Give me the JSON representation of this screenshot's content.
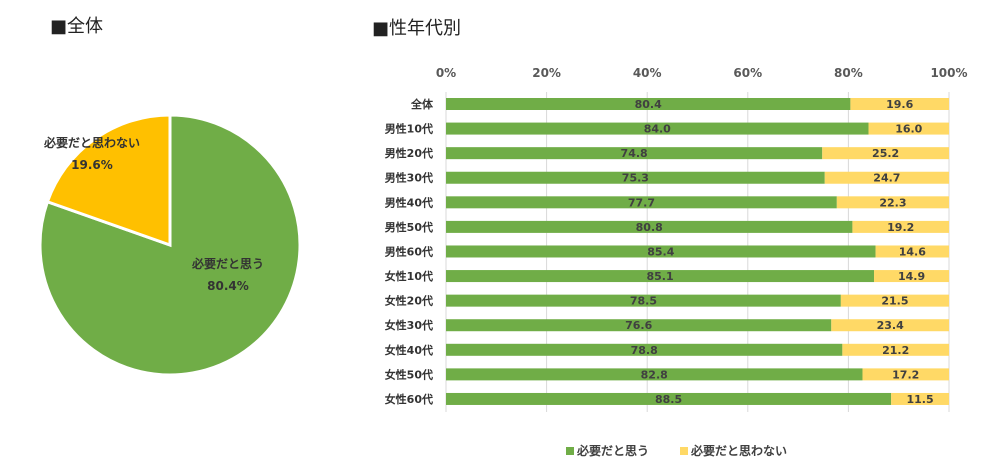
{
  "pie": {
    "title": "■全体",
    "chart_data": {
      "type": "pie",
      "slices": [
        {
          "label": "必要だと思う",
          "value": 80.4,
          "value_label": "80.4%",
          "color": "#70AD47"
        },
        {
          "label": "必要だと思わない",
          "value": 19.6,
          "value_label": "19.6%",
          "color": "#FFC000"
        }
      ]
    }
  },
  "bars": {
    "title": "■性年代別",
    "chart_data": {
      "type": "bar",
      "orientation": "horizontal",
      "stacked": true,
      "categories": [
        "全体",
        "男性10代",
        "男性20代",
        "男性30代",
        "男性40代",
        "男性50代",
        "男性60代",
        "女性10代",
        "女性20代",
        "女性30代",
        "女性40代",
        "女性50代",
        "女性60代"
      ],
      "series": [
        {
          "name": "必要だと思う",
          "color": "#70AD47",
          "values": [
            80.4,
            84.0,
            74.8,
            75.3,
            77.7,
            80.8,
            85.4,
            85.1,
            78.5,
            76.6,
            78.8,
            82.8,
            88.5
          ]
        },
        {
          "name": "必要だと思わない",
          "color": "#FFD966",
          "values": [
            19.6,
            16.0,
            25.2,
            24.7,
            22.3,
            19.2,
            14.6,
            14.9,
            21.5,
            23.4,
            21.2,
            17.2,
            11.5
          ]
        }
      ],
      "xlim": [
        0,
        100
      ],
      "x_ticks": [
        "0%",
        "20%",
        "40%",
        "60%",
        "80%",
        "100%"
      ],
      "axis_position": "top",
      "grid": true,
      "legend": "bottom"
    }
  }
}
